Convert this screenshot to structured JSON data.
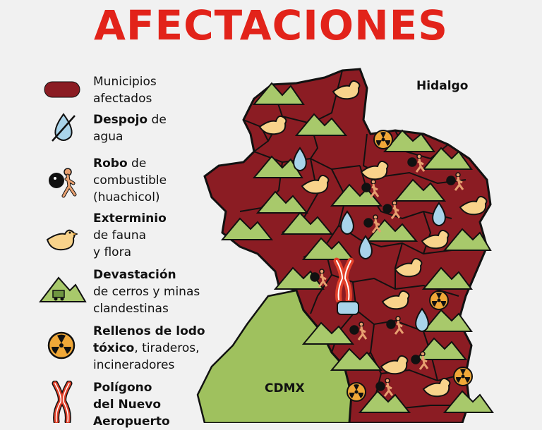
{
  "title": "AFECTACIONES",
  "regions": {
    "north": "Hidalgo",
    "west": "CDMX"
  },
  "legend": {
    "municipios": {
      "line1": "Municipios",
      "line2": "afectados"
    },
    "agua": {
      "bold": "Despojo",
      "rest": " de",
      "line2": "agua"
    },
    "combustible": {
      "bold": "Robo",
      "rest": " de",
      "line2": "combustible",
      "line3": "(huachicol)"
    },
    "fauna": {
      "bold": "Exterminio",
      "line2": "de fauna",
      "line3": "y flora"
    },
    "cerros": {
      "bold": "Devastación",
      "line2": "de cerros y minas",
      "line3": "clandestinas"
    },
    "lodo": {
      "bold": "Rellenos de lodo",
      "bold2": "tóxico",
      "rest2": ", tiraderos,",
      "line3": "incineradores"
    },
    "aeropuerto": {
      "bold": "Polígono",
      "line2": "del Nuevo",
      "line3": "Aeropuerto"
    }
  },
  "colors": {
    "title": "#e2231a",
    "municipio": "#8b1c23",
    "cdmx": "#9fc15e",
    "mountain": "#a8c96b",
    "duck": "#f8d38b",
    "water": "#a9d4ea",
    "hazard": "#f0a838",
    "airport": "#e2412a"
  }
}
